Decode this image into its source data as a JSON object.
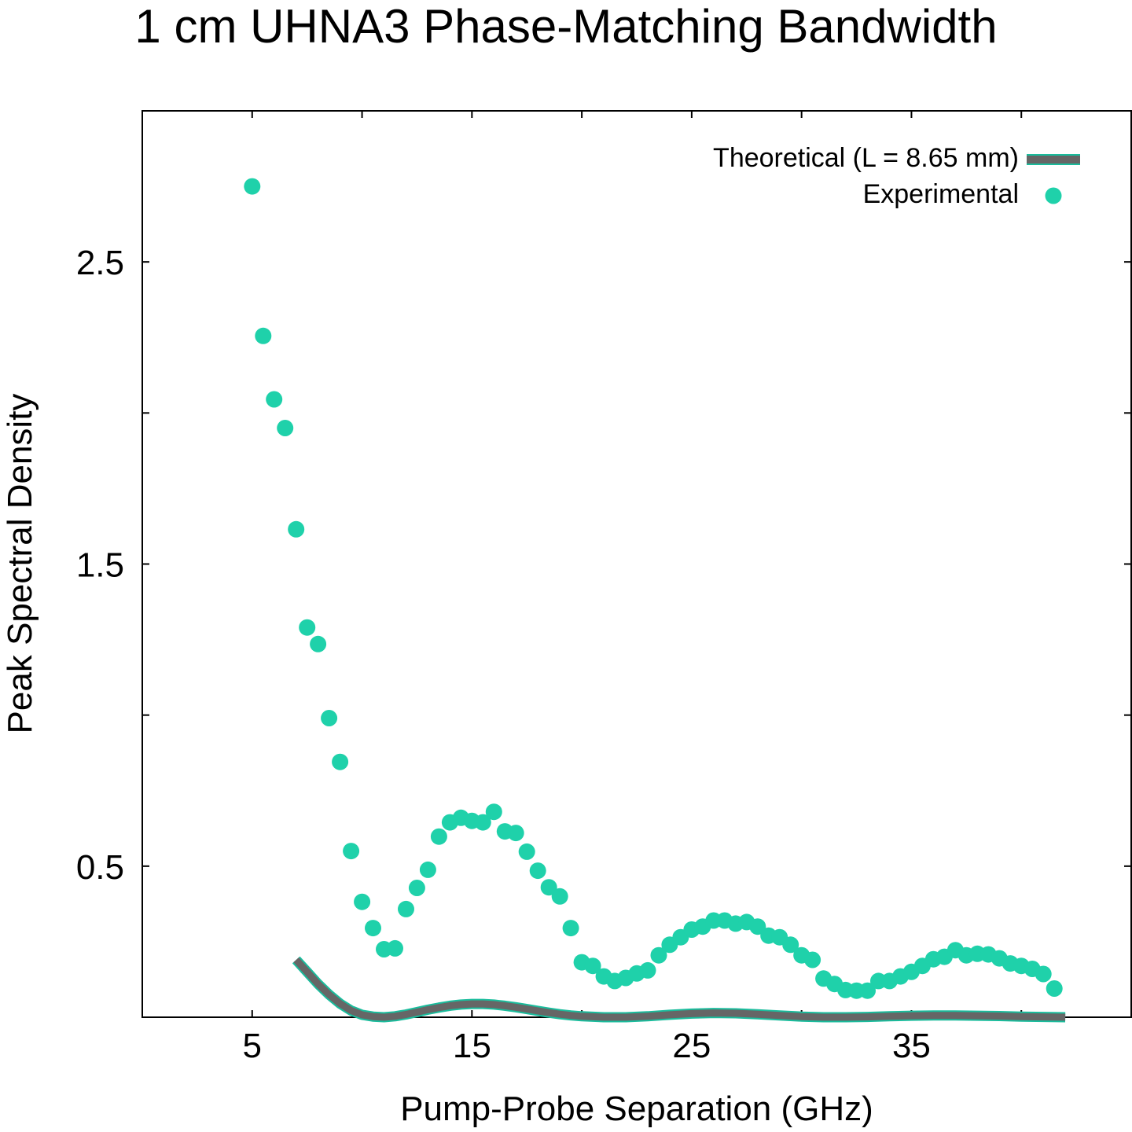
{
  "chart_data": {
    "type": "scatter",
    "title": "1 cm UHNA3 Phase-Matching Bandwidth",
    "xlabel": "Pump-Probe Separation (GHz)",
    "ylabel": "Peak Spectral Density",
    "xlim": [
      0,
      45
    ],
    "ylim": [
      0,
      3.0
    ],
    "x_ticks": [
      5,
      10,
      15,
      20,
      25,
      30,
      35,
      40
    ],
    "x_tick_labels": [
      "5",
      "",
      "15",
      "",
      "25",
      "",
      "35",
      ""
    ],
    "y_ticks": [
      0.5,
      1.0,
      1.5,
      2.0,
      2.5
    ],
    "y_tick_labels": [
      "0.5",
      "",
      "1.5",
      "",
      "2.5"
    ],
    "grid": false,
    "legend_placement": "top-right",
    "series": [
      {
        "name": "Theoretical (L = 8.65 mm)",
        "kind": "line",
        "color": "#666666",
        "edge_color": "#1abc9c",
        "x": [
          7.0,
          7.5,
          8.0,
          8.5,
          9.0,
          9.5,
          10.0,
          10.5,
          11.0,
          11.5,
          12.0,
          12.5,
          13.0,
          13.5,
          14.0,
          14.5,
          15.0,
          15.5,
          16.0,
          16.5,
          17.0,
          17.5,
          18.0,
          18.5,
          19.0,
          19.5,
          20.0,
          21.0,
          22.0,
          23.0,
          24.0,
          25.0,
          26.0,
          27.0,
          28.0,
          29.0,
          30.0,
          31.0,
          32.0,
          33.0,
          34.0,
          35.0,
          36.0,
          37.0,
          38.0,
          39.0,
          40.0,
          41.0,
          42.0
        ],
        "y": [
          0.19,
          0.15,
          0.11,
          0.075,
          0.045,
          0.022,
          0.008,
          0.002,
          0.0,
          0.003,
          0.009,
          0.017,
          0.025,
          0.032,
          0.038,
          0.042,
          0.044,
          0.044,
          0.042,
          0.038,
          0.033,
          0.027,
          0.021,
          0.015,
          0.01,
          0.006,
          0.003,
          0.0,
          0.0,
          0.003,
          0.008,
          0.012,
          0.014,
          0.013,
          0.01,
          0.006,
          0.002,
          0.0,
          0.0,
          0.001,
          0.003,
          0.005,
          0.006,
          0.006,
          0.005,
          0.004,
          0.002,
          0.001,
          0.0
        ]
      },
      {
        "name": "Experimental",
        "kind": "points",
        "color": "#1fd1aa",
        "x": [
          5.0,
          5.5,
          6.0,
          6.5,
          7.0,
          7.5,
          8.0,
          8.5,
          9.0,
          9.5,
          10.0,
          10.5,
          11.0,
          11.5,
          12.0,
          12.5,
          13.0,
          13.5,
          14.0,
          14.5,
          15.0,
          15.5,
          16.0,
          16.5,
          17.0,
          17.5,
          18.0,
          18.5,
          19.0,
          19.5,
          20.0,
          20.5,
          21.0,
          21.5,
          22.0,
          22.5,
          23.0,
          23.5,
          24.0,
          24.5,
          25.0,
          25.5,
          26.0,
          26.5,
          27.0,
          27.5,
          28.0,
          28.5,
          29.0,
          29.5,
          30.0,
          30.5,
          31.0,
          31.5,
          32.0,
          32.5,
          33.0,
          33.5,
          34.0,
          34.5,
          35.0,
          35.5,
          36.0,
          36.5,
          37.0,
          37.5,
          38.0,
          38.5,
          39.0,
          39.5,
          40.0,
          40.5,
          41.0,
          41.5
        ],
        "y": [
          2.75,
          2.255,
          2.045,
          1.95,
          1.615,
          1.29,
          1.235,
          0.99,
          0.845,
          0.55,
          0.382,
          0.295,
          0.225,
          0.228,
          0.358,
          0.428,
          0.488,
          0.598,
          0.645,
          0.66,
          0.65,
          0.645,
          0.68,
          0.615,
          0.61,
          0.548,
          0.485,
          0.43,
          0.4,
          0.295,
          0.182,
          0.17,
          0.135,
          0.12,
          0.13,
          0.145,
          0.155,
          0.205,
          0.24,
          0.265,
          0.29,
          0.3,
          0.32,
          0.32,
          0.31,
          0.315,
          0.3,
          0.27,
          0.265,
          0.24,
          0.205,
          0.19,
          0.128,
          0.11,
          0.09,
          0.088,
          0.088,
          0.12,
          0.12,
          0.135,
          0.15,
          0.17,
          0.192,
          0.2,
          0.222,
          0.205,
          0.21,
          0.208,
          0.195,
          0.178,
          0.17,
          0.16,
          0.143,
          0.095
        ]
      }
    ]
  }
}
